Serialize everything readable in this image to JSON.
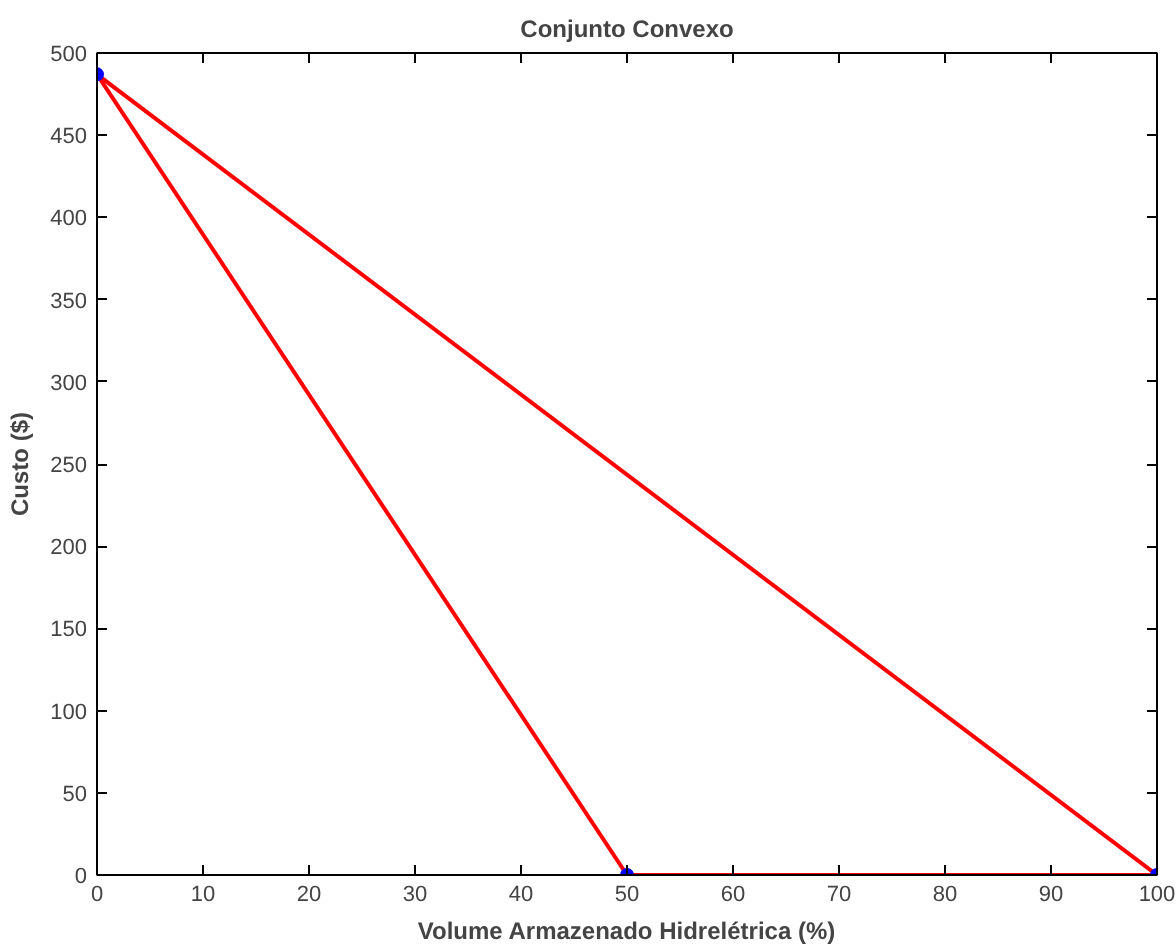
{
  "chart_data": {
    "type": "line",
    "title": "Conjunto Convexo",
    "xlabel": "Volume Armazenado Hidrelétrica (%)",
    "ylabel": "Custo ($)",
    "xlim": [
      0,
      100
    ],
    "ylim": [
      0,
      500
    ],
    "xticks": [
      0,
      10,
      20,
      30,
      40,
      50,
      60,
      70,
      80,
      90,
      100
    ],
    "yticks": [
      0,
      50,
      100,
      150,
      200,
      250,
      300,
      350,
      400,
      450,
      500
    ],
    "grid": false,
    "series": [
      {
        "color": "#ff0000",
        "marker": "none",
        "x": [
          0,
          50
        ],
        "values": [
          487,
          0
        ]
      },
      {
        "color": "#ff0000",
        "marker": "none",
        "x": [
          50,
          100
        ],
        "values": [
          0,
          0
        ]
      },
      {
        "color": "#ff0000",
        "marker": "none",
        "x": [
          0,
          100
        ],
        "values": [
          487,
          0
        ]
      },
      {
        "type": "scatter",
        "color": "#0000ff",
        "marker": "circle",
        "x": [
          0,
          50,
          100
        ],
        "values": [
          487,
          0,
          0
        ]
      }
    ]
  }
}
